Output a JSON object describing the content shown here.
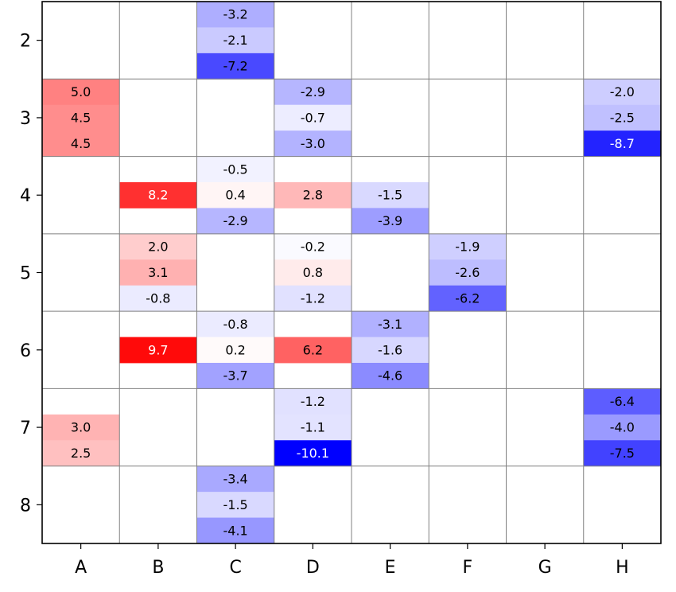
{
  "chart_data": {
    "type": "heatmap",
    "title": "",
    "xlabel": "",
    "ylabel": "",
    "columns": [
      "A",
      "B",
      "C",
      "D",
      "E",
      "F",
      "G",
      "H"
    ],
    "rows": [
      "2",
      "3",
      "4",
      "5",
      "6",
      "7",
      "8"
    ],
    "subrows_per_row": 3,
    "colormap": "bwr",
    "color_range": [
      -10.1,
      10.1
    ],
    "grid": true,
    "cells": [
      {
        "col": "C",
        "row": "2",
        "sub": 0,
        "value": -3.2
      },
      {
        "col": "C",
        "row": "2",
        "sub": 1,
        "value": -2.1
      },
      {
        "col": "C",
        "row": "2",
        "sub": 2,
        "value": -7.2
      },
      {
        "col": "A",
        "row": "3",
        "sub": 0,
        "value": 5.0
      },
      {
        "col": "A",
        "row": "3",
        "sub": 1,
        "value": 4.5
      },
      {
        "col": "A",
        "row": "3",
        "sub": 2,
        "value": 4.5
      },
      {
        "col": "D",
        "row": "3",
        "sub": 0,
        "value": -2.9
      },
      {
        "col": "D",
        "row": "3",
        "sub": 1,
        "value": -0.7
      },
      {
        "col": "D",
        "row": "3",
        "sub": 2,
        "value": -3.0
      },
      {
        "col": "H",
        "row": "3",
        "sub": 0,
        "value": -2.0
      },
      {
        "col": "H",
        "row": "3",
        "sub": 1,
        "value": -2.5
      },
      {
        "col": "H",
        "row": "3",
        "sub": 2,
        "value": -8.7
      },
      {
        "col": "B",
        "row": "4",
        "sub": 1,
        "value": 8.2
      },
      {
        "col": "C",
        "row": "4",
        "sub": 0,
        "value": -0.5
      },
      {
        "col": "C",
        "row": "4",
        "sub": 1,
        "value": 0.4
      },
      {
        "col": "C",
        "row": "4",
        "sub": 2,
        "value": -2.9
      },
      {
        "col": "D",
        "row": "4",
        "sub": 1,
        "value": 2.8
      },
      {
        "col": "E",
        "row": "4",
        "sub": 1,
        "value": -1.5
      },
      {
        "col": "E",
        "row": "4",
        "sub": 2,
        "value": -3.9
      },
      {
        "col": "B",
        "row": "5",
        "sub": 0,
        "value": 2.0
      },
      {
        "col": "B",
        "row": "5",
        "sub": 1,
        "value": 3.1
      },
      {
        "col": "B",
        "row": "5",
        "sub": 2,
        "value": -0.8
      },
      {
        "col": "D",
        "row": "5",
        "sub": 0,
        "value": -0.2
      },
      {
        "col": "D",
        "row": "5",
        "sub": 1,
        "value": 0.8
      },
      {
        "col": "D",
        "row": "5",
        "sub": 2,
        "value": -1.2
      },
      {
        "col": "F",
        "row": "5",
        "sub": 0,
        "value": -1.9
      },
      {
        "col": "F",
        "row": "5",
        "sub": 1,
        "value": -2.6
      },
      {
        "col": "F",
        "row": "5",
        "sub": 2,
        "value": -6.2
      },
      {
        "col": "B",
        "row": "6",
        "sub": 1,
        "value": 9.7
      },
      {
        "col": "C",
        "row": "6",
        "sub": 0,
        "value": -0.8
      },
      {
        "col": "C",
        "row": "6",
        "sub": 1,
        "value": 0.2
      },
      {
        "col": "C",
        "row": "6",
        "sub": 2,
        "value": -3.7
      },
      {
        "col": "D",
        "row": "6",
        "sub": 1,
        "value": 6.2
      },
      {
        "col": "E",
        "row": "6",
        "sub": 0,
        "value": -3.1
      },
      {
        "col": "E",
        "row": "6",
        "sub": 1,
        "value": -1.6
      },
      {
        "col": "E",
        "row": "6",
        "sub": 2,
        "value": -4.6
      },
      {
        "col": "A",
        "row": "7",
        "sub": 1,
        "value": 3.0
      },
      {
        "col": "A",
        "row": "7",
        "sub": 2,
        "value": 2.5
      },
      {
        "col": "D",
        "row": "7",
        "sub": 0,
        "value": -1.2
      },
      {
        "col": "D",
        "row": "7",
        "sub": 1,
        "value": -1.1
      },
      {
        "col": "D",
        "row": "7",
        "sub": 2,
        "value": -10.1
      },
      {
        "col": "H",
        "row": "7",
        "sub": 0,
        "value": -6.4
      },
      {
        "col": "H",
        "row": "7",
        "sub": 1,
        "value": -4.0
      },
      {
        "col": "H",
        "row": "7",
        "sub": 2,
        "value": -7.5
      },
      {
        "col": "C",
        "row": "8",
        "sub": 0,
        "value": -3.4
      },
      {
        "col": "C",
        "row": "8",
        "sub": 1,
        "value": -1.5
      },
      {
        "col": "C",
        "row": "8",
        "sub": 2,
        "value": -4.1
      }
    ]
  }
}
